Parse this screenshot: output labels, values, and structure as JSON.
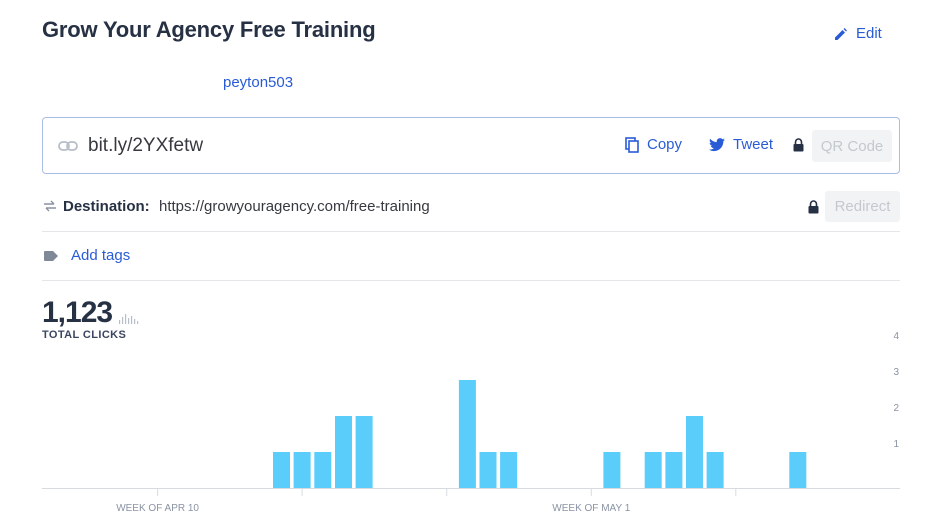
{
  "header": {
    "title": "Grow Your Agency Free Training",
    "edit_label": "Edit",
    "owner": "peyton503"
  },
  "link": {
    "short_url": "bit.ly/2YXfetw",
    "copy_label": "Copy",
    "tweet_label": "Tweet",
    "qr_label": "QR Code"
  },
  "destination": {
    "label": "Destination:",
    "url": "https://growyouragency.com/free-training",
    "redirect_label": "Redirect"
  },
  "tags": {
    "add_label": "Add tags"
  },
  "stats": {
    "total_clicks": "1,123",
    "total_label": "TOTAL CLICKS"
  },
  "icons": {
    "edit": "pencil-icon",
    "link": "link-icon",
    "copy": "copy-icon",
    "tweet": "twitter-icon",
    "lock": "lock-icon",
    "destination": "arrows-icon",
    "tag": "tag-icon",
    "mini_chart": "bar-chart-icon"
  },
  "colors": {
    "accent": "#2a5bd7",
    "bar": "#5bcdfa",
    "title": "#273144"
  },
  "chart_data": {
    "type": "bar",
    "x_ticks": [
      "WEEK OF APR 10",
      "WEEK OF MAY 1"
    ],
    "y_ticks": [
      1,
      2,
      3,
      4
    ],
    "ylim": [
      0,
      4
    ],
    "days": 41,
    "tick_days": [
      6,
      27
    ],
    "minor_tick_days": [
      13,
      20,
      34
    ],
    "values": [
      0,
      0,
      0,
      0,
      0,
      0,
      0,
      0,
      0,
      0,
      0,
      0,
      1,
      1,
      1,
      2,
      2,
      0,
      0,
      0,
      0,
      3,
      1,
      1,
      0,
      0,
      0,
      0,
      1,
      0,
      1,
      1,
      2,
      1,
      0,
      0,
      0,
      1,
      0,
      0,
      0
    ]
  }
}
